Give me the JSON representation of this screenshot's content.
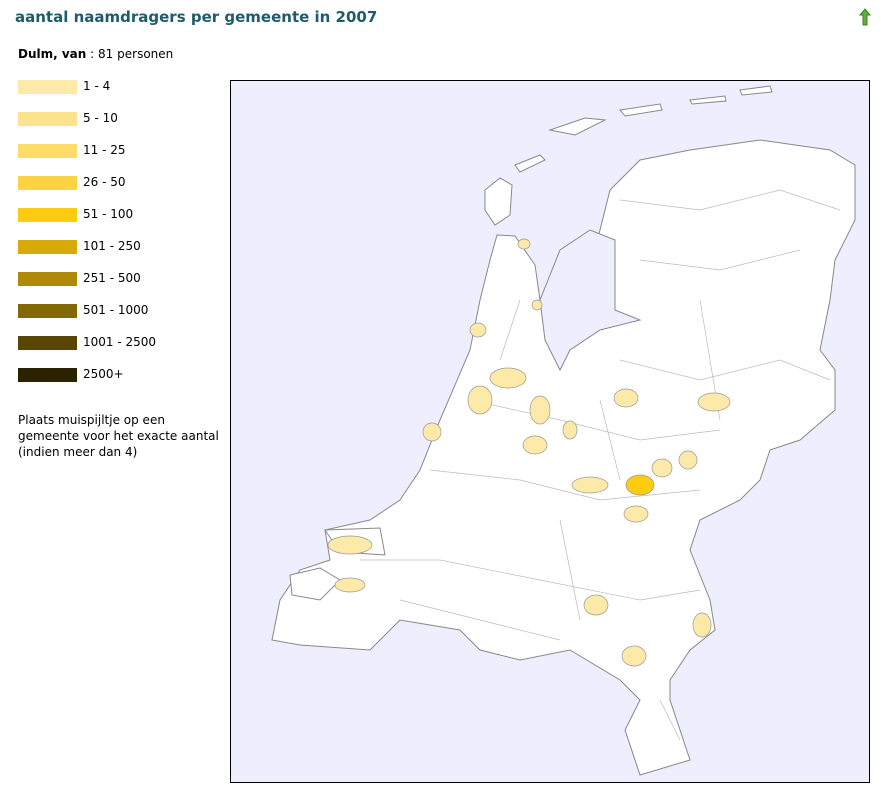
{
  "header": {
    "title": "aantal naamdragers per gemeente in 2007"
  },
  "summary": {
    "name": "Dulm, van",
    "separator": ":",
    "count": 81,
    "unit": "personen"
  },
  "legend": [
    {
      "label": "1 - 4",
      "color": "#fdeaa8"
    },
    {
      "label": "5 - 10",
      "color": "#fde48c"
    },
    {
      "label": "11 - 25",
      "color": "#fddc68"
    },
    {
      "label": "26 - 50",
      "color": "#fdd346"
    },
    {
      "label": "51 - 100",
      "color": "#fdcb10"
    },
    {
      "label": "101 - 250",
      "color": "#d6aa08"
    },
    {
      "label": "251 - 500",
      "color": "#ad8b08"
    },
    {
      "label": "501 - 1000",
      "color": "#836904"
    },
    {
      "label": "1001 - 2500",
      "color": "#594502"
    },
    {
      "label": "2500+",
      "color": "#2d2200"
    }
  ],
  "note": [
    "Plaats muispijltje op een",
    "gemeente voor het exacte aantal",
    "(indien meer dan 4)"
  ]
}
